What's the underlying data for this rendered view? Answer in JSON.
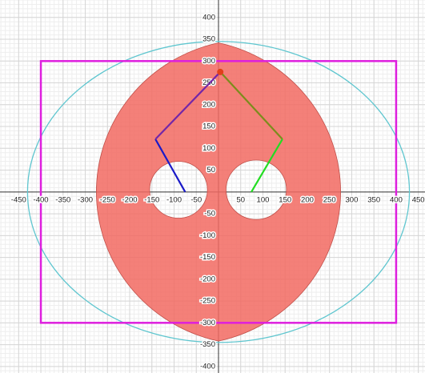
{
  "chart_data": {
    "type": "geometry",
    "xlim": [
      -492,
      465
    ],
    "ylim": [
      -415,
      440
    ],
    "xticks": [
      -450,
      -400,
      -350,
      -300,
      -250,
      -200,
      -150,
      -100,
      -50,
      50,
      100,
      150,
      200,
      250,
      300,
      350,
      400,
      450
    ],
    "yticks": [
      -400,
      -350,
      -300,
      -250,
      -200,
      -150,
      -100,
      -50,
      50,
      100,
      150,
      200,
      250,
      300,
      350,
      400
    ],
    "grid": true,
    "ellipse": {
      "cx": 0,
      "cy": 0,
      "rx": 430,
      "ry": 345,
      "color": "#5fc6cf"
    },
    "workspace": {
      "centers_x": [
        -75,
        75
      ],
      "radius": 350,
      "color": "#f26a62"
    },
    "holes": [
      {
        "cx": -90,
        "cy": 5,
        "r": 65
      },
      {
        "cx": 85,
        "cy": 5,
        "r": 68
      }
    ],
    "rectangle": {
      "x": [
        -400,
        400
      ],
      "y": [
        -300,
        300
      ],
      "color": "#de1fde"
    },
    "links": [
      {
        "color": "#1a1ac8",
        "x": [
          -75,
          -142
        ],
        "y": [
          0,
          121
        ]
      },
      {
        "color": "#7326a8",
        "x": [
          -142,
          4
        ],
        "y": [
          121,
          275
        ]
      },
      {
        "color": "#7c8c1c",
        "x": [
          4,
          144
        ],
        "y": [
          275,
          121
        ]
      },
      {
        "color": "#22dd22",
        "x": [
          144,
          74
        ],
        "y": [
          121,
          0
        ]
      }
    ],
    "end_point": {
      "x": 4,
      "y": 275,
      "color": "#e0401a"
    }
  }
}
